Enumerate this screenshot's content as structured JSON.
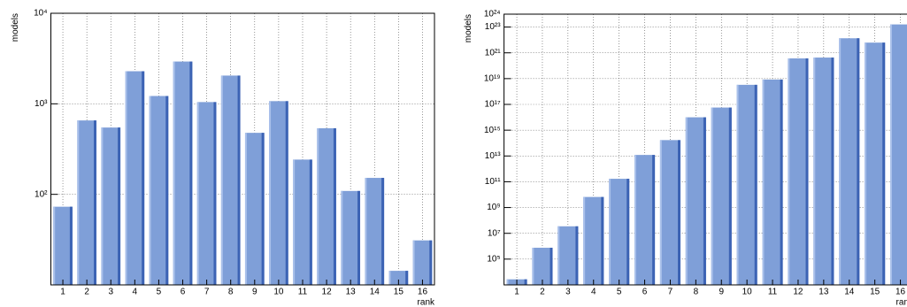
{
  "chart_data": [
    {
      "type": "bar",
      "xlabel": "rank",
      "ylabel": "models",
      "log_y": true,
      "grid": true,
      "color": "#7f9fd8",
      "edge_color": "#3c63b4",
      "categories": [
        "1",
        "2",
        "3",
        "4",
        "5",
        "6",
        "7",
        "8",
        "9",
        "10",
        "11",
        "12",
        "13",
        "14",
        "15",
        "16"
      ],
      "values": [
        73,
        655,
        547,
        2290,
        1220,
        2930,
        1045,
        2050,
        478,
        1070,
        242,
        537,
        109,
        152,
        14.3,
        31
      ],
      "ylim": [
        10,
        10000
      ],
      "yticks": [
        {
          "value": 100,
          "label": "10²"
        },
        {
          "value": 1000,
          "label": "10³"
        },
        {
          "value": 10000,
          "label": "10⁴"
        }
      ]
    },
    {
      "type": "bar",
      "xlabel": "rank",
      "ylabel": "models",
      "log_y": true,
      "grid": true,
      "color": "#7f9fd8",
      "edge_color": "#3c63b4",
      "categories": [
        "1",
        "2",
        "3",
        "4",
        "5",
        "6",
        "7",
        "8",
        "9",
        "10",
        "11",
        "12",
        "13",
        "14",
        "15",
        "16"
      ],
      "values": [
        2700,
        760000,
        35000000,
        6600000000,
        170000000000,
        12000000000000,
        170000000000000,
        1e+16,
        5.7e+16,
        3.3e+18,
        8.5e+18,
        3.7e+20,
        4.3e+20,
        1.35e+22,
        6.2e+21,
        1.6e+23
      ],
      "ylim": [
        1000,
        1e+24
      ],
      "yticks": [
        {
          "value": 100000.0,
          "label": "10⁵"
        },
        {
          "value": 10000000.0,
          "label": "10⁷"
        },
        {
          "value": 1000000000.0,
          "label": "10⁹"
        },
        {
          "value": 100000000000.0,
          "label": "10¹¹"
        },
        {
          "value": 10000000000000.0,
          "label": "10¹³"
        },
        {
          "value": 1000000000000000.0,
          "label": "10¹⁵"
        },
        {
          "value": 1e+17,
          "label": "10¹⁷"
        },
        {
          "value": 1e+19,
          "label": "10¹⁹"
        },
        {
          "value": 1e+21,
          "label": "10²¹"
        },
        {
          "value": 1e+23,
          "label": "10²³"
        },
        {
          "value": 1e+24,
          "label": "10²⁴"
        }
      ]
    }
  ]
}
